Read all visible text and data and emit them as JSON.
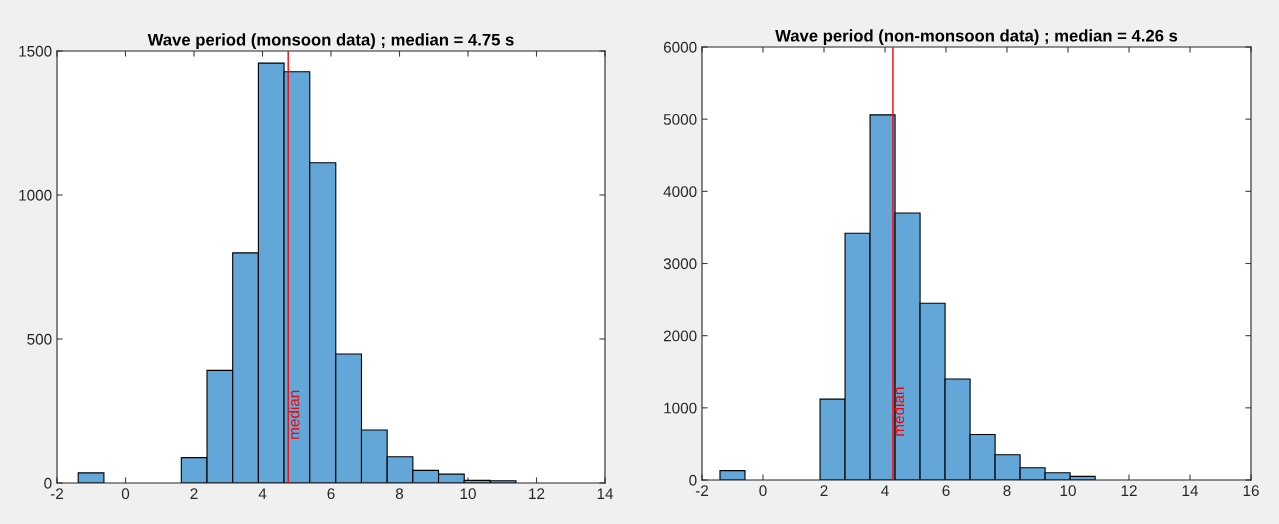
{
  "chart_data": [
    {
      "type": "histogram",
      "title": "Wave period (monsoon data) ; median = 4.75 s",
      "bins": [
        -1.38,
        -0.63,
        0.12,
        0.88,
        1.63,
        2.38,
        3.13,
        3.88,
        4.63,
        5.38,
        6.14,
        6.89,
        7.64,
        8.39,
        9.14,
        9.89,
        10.65,
        11.4,
        12.15,
        12.9,
        13.65
      ],
      "values": [
        35,
        0,
        0,
        0,
        88,
        391,
        799,
        1458,
        1428,
        1112,
        448,
        184,
        91,
        44,
        31,
        9,
        8,
        0,
        0,
        0
      ],
      "color": "#62a7d7",
      "xlim": [
        -2,
        14
      ],
      "xticks": [
        -2,
        0,
        2,
        4,
        6,
        8,
        10,
        12,
        14
      ],
      "ylim": [
        0,
        1500
      ],
      "yticks": [
        0,
        500,
        1000,
        1500
      ],
      "ref_lines": [
        {
          "axis": "x",
          "value": 4.75,
          "label": "median",
          "color": "#ff0000"
        }
      ],
      "grid": false
    },
    {
      "type": "histogram",
      "title": "Wave period (non-monsoon data) ; median = 4.26 s",
      "bins": [
        -1.41,
        -0.59,
        0.23,
        1.05,
        1.87,
        2.69,
        3.51,
        4.33,
        5.15,
        5.97,
        6.79,
        7.61,
        8.43,
        9.25,
        10.07,
        10.89,
        11.71,
        12.53,
        13.35,
        14.17,
        14.99
      ],
      "values": [
        130,
        0,
        0,
        0,
        1120,
        3420,
        5060,
        3700,
        2450,
        1400,
        630,
        350,
        170,
        100,
        50,
        0,
        0,
        0,
        0,
        0
      ],
      "color": "#62a7d7",
      "xlim": [
        -2,
        16
      ],
      "xticks": [
        -2,
        0,
        2,
        4,
        6,
        8,
        10,
        12,
        14,
        16
      ],
      "ylim": [
        0,
        6000
      ],
      "yticks": [
        0,
        1000,
        2000,
        3000,
        4000,
        5000,
        6000
      ],
      "ref_lines": [
        {
          "axis": "x",
          "value": 4.26,
          "label": "median",
          "color": "#ff0000"
        }
      ],
      "grid": false
    }
  ]
}
